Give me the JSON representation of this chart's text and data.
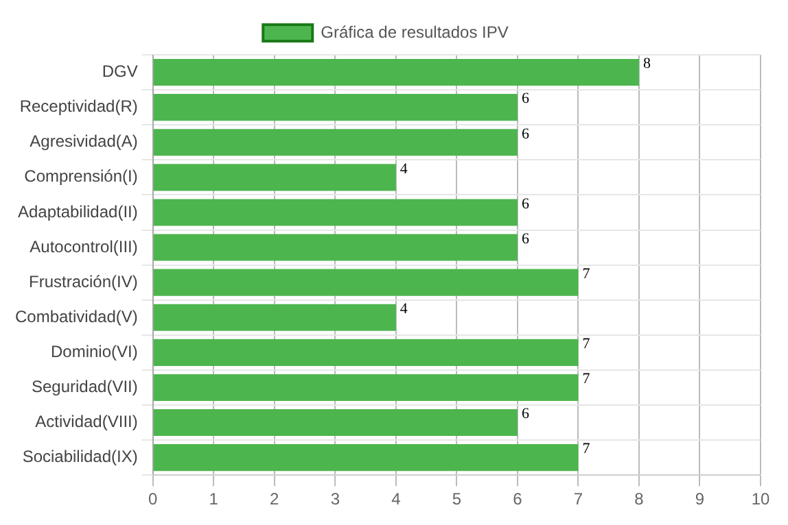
{
  "chart_data": {
    "type": "bar",
    "orientation": "horizontal",
    "categories": [
      "DGV",
      "Receptividad(R)",
      "Agresividad(A)",
      "Comprensión(I)",
      "Adaptabilidad(II)",
      "Autocontrol(III)",
      "Frustración(IV)",
      "Combatividad(V)",
      "Dominio(VI)",
      "Seguridad(VII)",
      "Actividad(VIII)",
      "Sociabilidad(IX)"
    ],
    "series": [
      {
        "name": "Gráfica de resultados IPV",
        "color": "#4db54d",
        "values": [
          8,
          6,
          6,
          4,
          6,
          6,
          7,
          4,
          7,
          7,
          6,
          7
        ]
      }
    ],
    "xlim": [
      0,
      10
    ],
    "xticks": [
      0,
      1,
      2,
      3,
      4,
      5,
      6,
      7,
      8,
      9,
      10
    ],
    "grid": true,
    "legend": "top",
    "data_labels": true
  }
}
